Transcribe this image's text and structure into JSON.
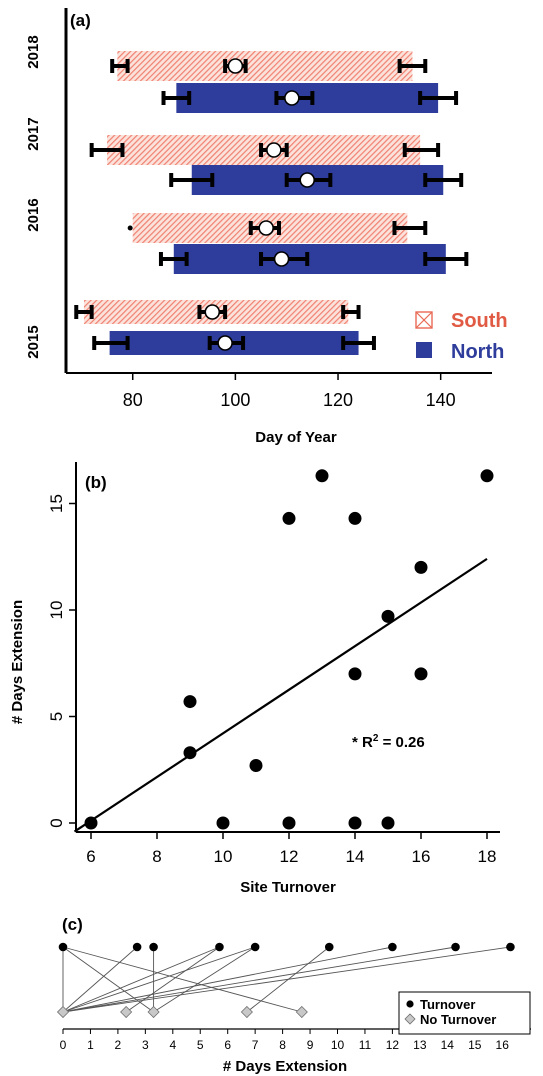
{
  "chart_data": [
    {
      "panel_label": "(a)",
      "type": "bar",
      "orientation": "horizontal-range",
      "xlabel": "Day of Year",
      "xticks": [
        80,
        100,
        120,
        140
      ],
      "xlim": [
        67,
        150
      ],
      "categories": [
        "2018",
        "2017",
        "2016",
        "2015"
      ],
      "colors": {
        "South": "#f08070",
        "North": "#2e3d9c"
      },
      "legend": {
        "position": "right",
        "entries": [
          {
            "name": "South",
            "marker": "hatched-box"
          },
          {
            "name": "North",
            "marker": "filled-box"
          }
        ]
      },
      "series": [
        {
          "name": "South",
          "ranges": [
            {
              "year": "2018",
              "start": 77,
              "end": 134.5,
              "start_err": [
                76,
                79
              ],
              "end_err": [
                132,
                137
              ],
              "mean": 100,
              "mean_err": [
                98,
                102
              ]
            },
            {
              "year": "2017",
              "start": 75,
              "end": 136,
              "start_err": [
                72,
                78
              ],
              "end_err": [
                133,
                139.5
              ],
              "mean": 107.5,
              "mean_err": [
                105,
                110
              ]
            },
            {
              "year": "2016",
              "start": 80,
              "end": 133.5,
              "start_err": [
                79.5,
                80
              ],
              "end_err": [
                131,
                137
              ],
              "mean": 106,
              "mean_err": [
                103,
                108.5
              ]
            },
            {
              "year": "2015",
              "start": 70.5,
              "end": 122,
              "start_err": [
                69,
                72
              ],
              "end_err": [
                121,
                124
              ],
              "mean": 95.5,
              "mean_err": [
                93,
                98
              ]
            }
          ]
        },
        {
          "name": "North",
          "ranges": [
            {
              "year": "2018",
              "start": 88.5,
              "end": 139.5,
              "start_err": [
                86,
                91
              ],
              "end_err": [
                136,
                143
              ],
              "mean": 111,
              "mean_err": [
                108,
                115
              ]
            },
            {
              "year": "2017",
              "start": 91.5,
              "end": 140.5,
              "start_err": [
                87.5,
                95.5
              ],
              "end_err": [
                137,
                144
              ],
              "mean": 114,
              "mean_err": [
                110,
                118.5
              ]
            },
            {
              "year": "2016",
              "start": 88,
              "end": 141,
              "start_err": [
                85.5,
                90.5
              ],
              "end_err": [
                137,
                145
              ],
              "mean": 109,
              "mean_err": [
                105,
                114
              ]
            },
            {
              "year": "2015",
              "start": 75.5,
              "end": 124,
              "start_err": [
                72.5,
                79
              ],
              "end_err": [
                121,
                127
              ],
              "mean": 98,
              "mean_err": [
                95,
                101.5
              ]
            }
          ]
        }
      ]
    },
    {
      "panel_label": "(b)",
      "type": "scatter",
      "xlabel": "Site Turnover",
      "ylabel": "# Days Extension",
      "xticks": [
        6,
        8,
        10,
        12,
        14,
        16,
        18
      ],
      "yticks": [
        0,
        5,
        10,
        15
      ],
      "xlim": [
        5.5,
        18.7
      ],
      "ylim": [
        -0.6,
        17.4
      ],
      "points": [
        {
          "x": 6,
          "y": 0
        },
        {
          "x": 9,
          "y": 5.7
        },
        {
          "x": 9,
          "y": 3.3
        },
        {
          "x": 10,
          "y": 0
        },
        {
          "x": 11,
          "y": 2.7
        },
        {
          "x": 12,
          "y": 14.3
        },
        {
          "x": 12,
          "y": 0
        },
        {
          "x": 13,
          "y": 16.3
        },
        {
          "x": 14,
          "y": 14.3
        },
        {
          "x": 14,
          "y": 7
        },
        {
          "x": 14,
          "y": 0
        },
        {
          "x": 15,
          "y": 9.7
        },
        {
          "x": 15,
          "y": 0
        },
        {
          "x": 16,
          "y": 12
        },
        {
          "x": 16,
          "y": 7
        },
        {
          "x": 18,
          "y": 16.3
        }
      ],
      "fit_line": {
        "x": [
          5.5,
          18
        ],
        "y": [
          -0.4,
          12.4
        ]
      },
      "annotation": {
        "prefix": "* R",
        "sup": "2",
        "suffix": " = 0.26"
      }
    },
    {
      "panel_label": "(c)",
      "type": "line",
      "xlabel": "# Days Extension",
      "xticks": [
        0,
        1,
        2,
        3,
        4,
        5,
        6,
        7,
        8,
        9,
        10,
        11,
        12,
        13,
        14,
        15,
        16
      ],
      "xlim": [
        0,
        16.7
      ],
      "legend": {
        "position": "bottom-right",
        "entries": [
          {
            "name": "Turnover",
            "marker": "circle"
          },
          {
            "name": "No Turnover",
            "marker": "diamond"
          }
        ]
      },
      "turnover_points": [
        0,
        2.7,
        3.3,
        5.7,
        7,
        9.7,
        12,
        14.3,
        16.3
      ],
      "no_turnover_points": [
        0,
        2.3,
        3.3,
        6.7,
        8.7
      ],
      "links": [
        {
          "from": 0,
          "to": 0
        },
        {
          "from": 0,
          "to": 3.3
        },
        {
          "from": 0,
          "to": 8.7
        },
        {
          "from": 2.7,
          "to": 0
        },
        {
          "from": 3.3,
          "to": 3.3
        },
        {
          "from": 5.7,
          "to": 0
        },
        {
          "from": 5.7,
          "to": 2.3
        },
        {
          "from": 7,
          "to": 0
        },
        {
          "from": 7,
          "to": 3.3
        },
        {
          "from": 9.7,
          "to": 6.7
        },
        {
          "from": 12,
          "to": 0
        },
        {
          "from": 14.3,
          "to": 0
        },
        {
          "from": 16.3,
          "to": 0
        }
      ]
    }
  ]
}
